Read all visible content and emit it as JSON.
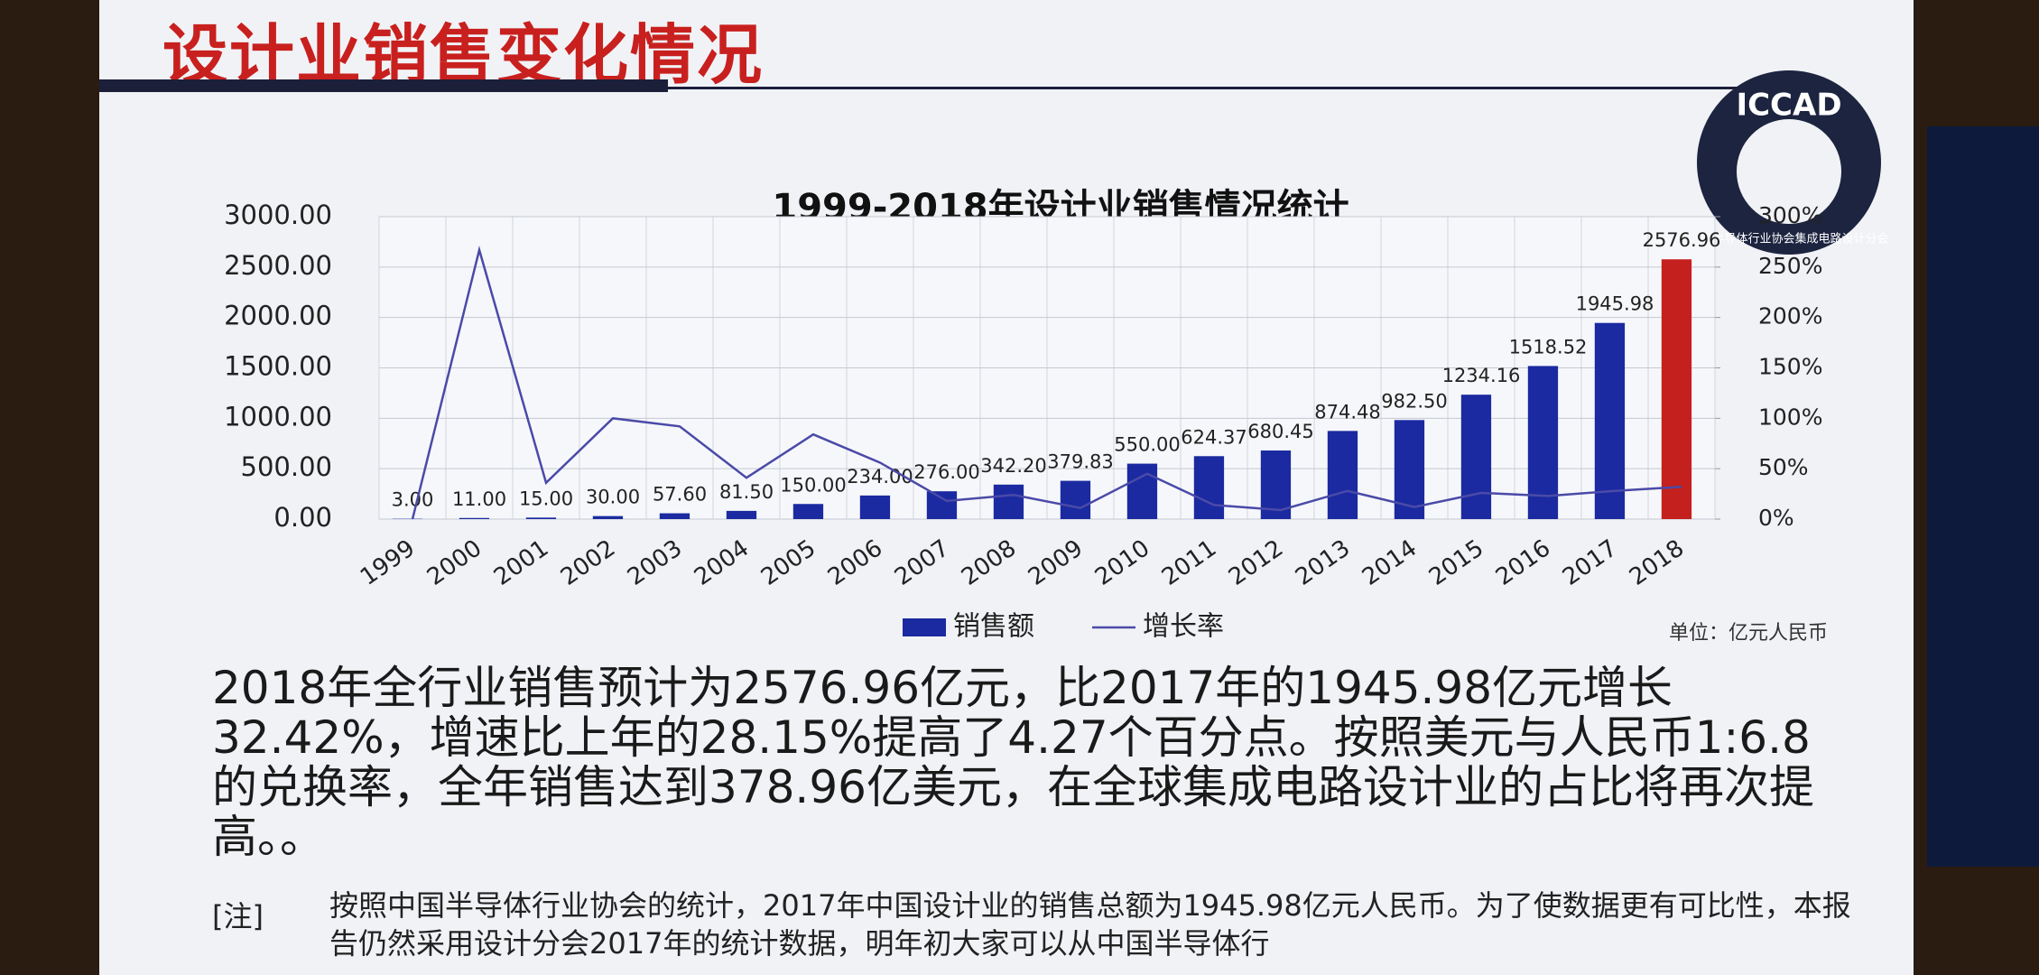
{
  "slide": {
    "title": "设计业销售变化情况",
    "logo": "ICCAD",
    "logo_ring": "中国半导体行业协会集成电路设计分会",
    "body": "2018年全行业销售预计为2576.96亿元，比2017年的1945.98亿元增长32.42%，增速比上年的28.15%提高了4.27个百分点。按照美元与人民币1:6.8的兑换率，全年销售达到378.96亿美元，在全球集成电路设计业的占比将再次提高。。",
    "note_label": "[注]",
    "note": "按照中国半导体行业协会的统计，2017年中国设计业的销售总额为1945.98亿元人民币。为了使数据更有可比性，本报告仍然采用设计分会2017年的统计数据，明年初大家可以从中国半导体行"
  },
  "chart_data": {
    "type": "bar",
    "title": "1999-2018年设计业销售情况统计",
    "unit_note": "单位：亿元人民币",
    "categories": [
      "1999",
      "2000",
      "2001",
      "2002",
      "2003",
      "2004",
      "2005",
      "2006",
      "2007",
      "2008",
      "2009",
      "2010",
      "2011",
      "2012",
      "2013",
      "2014",
      "2015",
      "2016",
      "2017",
      "2018"
    ],
    "grid": true,
    "ylim": [
      0,
      3000
    ],
    "yticks": [
      {
        "value": 0,
        "label": "0.00"
      },
      {
        "value": 500,
        "label": "500.00"
      },
      {
        "value": 1000,
        "label": "1000.00"
      },
      {
        "value": 1500,
        "label": "1500.00"
      },
      {
        "value": 2000,
        "label": "2000.00"
      },
      {
        "value": 2500,
        "label": "2500.00"
      },
      {
        "value": 3000,
        "label": "3000.00"
      }
    ],
    "y2lim": [
      0,
      300
    ],
    "y2ticks": [
      {
        "value": 0,
        "label": "0%"
      },
      {
        "value": 50,
        "label": "50%"
      },
      {
        "value": 100,
        "label": "100%"
      },
      {
        "value": 150,
        "label": "150%"
      },
      {
        "value": 200,
        "label": "200%"
      },
      {
        "value": 250,
        "label": "250%"
      },
      {
        "value": 300,
        "label": "300%"
      }
    ],
    "series": [
      {
        "name": "销售额",
        "type": "bar",
        "color": "#1b2aa0",
        "colors": [
          "#1b2aa0",
          "#1b2aa0",
          "#1b2aa0",
          "#1b2aa0",
          "#1b2aa0",
          "#1b2aa0",
          "#1b2aa0",
          "#1b2aa0",
          "#1b2aa0",
          "#1b2aa0",
          "#1b2aa0",
          "#1b2aa0",
          "#1b2aa0",
          "#1b2aa0",
          "#1b2aa0",
          "#1b2aa0",
          "#1b2aa0",
          "#1b2aa0",
          "#1b2aa0",
          "#c4201d"
        ],
        "values": [
          3,
          11,
          15,
          30,
          57.6,
          81.5,
          150,
          234,
          276,
          342.2,
          379.83,
          550,
          624.37,
          680.45,
          874.48,
          982.5,
          1234.16,
          1518.52,
          1945.98,
          2576.96
        ],
        "value_labels": [
          "3.00",
          "11.00",
          "15.00",
          "30.00",
          "57.60",
          "81.50",
          "150.00",
          "234.00",
          "276.00",
          "342.20",
          "379.83",
          "550.00",
          "624.37",
          "680.45",
          "874.48",
          "982.50",
          "1234.16",
          "1518.52",
          "1945.98",
          "2576.96"
        ]
      },
      {
        "name": "增长率",
        "type": "line",
        "axis": "y2",
        "color": "#4a4aa8",
        "values": [
          0,
          267,
          36,
          100,
          92,
          41,
          84,
          56,
          18,
          24,
          11,
          45,
          14,
          9,
          28,
          12,
          26,
          23,
          28,
          32
        ]
      }
    ]
  }
}
